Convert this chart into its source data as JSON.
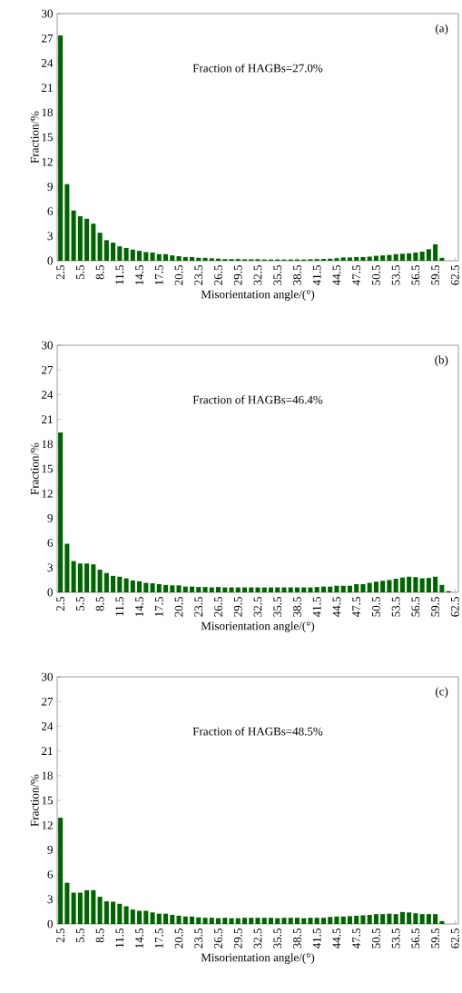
{
  "chart_data": [
    {
      "type": "bar",
      "categories": [
        "2.5",
        null,
        null,
        "5.5",
        null,
        null,
        "8.5",
        null,
        null,
        "11.5",
        null,
        null,
        "14.5",
        null,
        null,
        "17.5",
        null,
        null,
        "20.5",
        null,
        null,
        "23.5",
        null,
        null,
        "26.5",
        null,
        null,
        "29.5",
        null,
        null,
        "32.5",
        null,
        null,
        "35.5",
        null,
        null,
        "38.5",
        null,
        null,
        "41.5",
        null,
        null,
        "44.5",
        null,
        null,
        "47.5",
        null,
        null,
        "50.5",
        null,
        null,
        "53.5",
        null,
        null,
        "56.5",
        null,
        null,
        "59.5",
        null,
        null,
        "62.5"
      ],
      "values": [
        27.35,
        9.3,
        6.1,
        5.4,
        5.1,
        4.5,
        3.4,
        2.5,
        2.2,
        1.75,
        1.55,
        1.35,
        1.2,
        1.05,
        1.0,
        0.8,
        0.8,
        0.65,
        0.55,
        0.45,
        0.45,
        0.35,
        0.35,
        0.3,
        0.25,
        0.2,
        0.2,
        0.2,
        0.18,
        0.18,
        0.18,
        0.15,
        0.15,
        0.15,
        0.15,
        0.15,
        0.15,
        0.15,
        0.18,
        0.2,
        0.22,
        0.25,
        0.3,
        0.4,
        0.4,
        0.45,
        0.45,
        0.5,
        0.6,
        0.65,
        0.7,
        0.8,
        0.85,
        0.9,
        1.0,
        1.1,
        1.4,
        2.0,
        0.35,
        null,
        null
      ],
      "color": "#006400",
      "ylim": [
        0,
        30
      ],
      "yticks": [
        0,
        3,
        6,
        9,
        12,
        15,
        18,
        21,
        24,
        27,
        30
      ],
      "xlabel": "Misorientation angle/(°)",
      "ylabel": "Fraction/%",
      "annotations": [
        "(a)",
        "Fraction of HAGBs=27.0%"
      ]
    },
    {
      "type": "bar",
      "categories": [
        "2.5",
        null,
        null,
        "5.5",
        null,
        null,
        "8.5",
        null,
        null,
        "11.5",
        null,
        null,
        "14.5",
        null,
        null,
        "17.5",
        null,
        null,
        "20.5",
        null,
        null,
        "23.5",
        null,
        null,
        "26.5",
        null,
        null,
        "29.5",
        null,
        null,
        "32.5",
        null,
        null,
        "35.5",
        null,
        null,
        "38.5",
        null,
        null,
        "41.5",
        null,
        null,
        "44.5",
        null,
        null,
        "47.5",
        null,
        null,
        "50.5",
        null,
        null,
        "53.5",
        null,
        null,
        "56.5",
        null,
        null,
        "59.5",
        null,
        null,
        "62.5"
      ],
      "values": [
        19.4,
        5.9,
        3.8,
        3.5,
        3.5,
        3.4,
        2.75,
        2.35,
        2.0,
        1.9,
        1.7,
        1.45,
        1.35,
        1.15,
        1.1,
        1.0,
        0.9,
        0.85,
        0.85,
        0.7,
        0.7,
        0.65,
        0.65,
        0.6,
        0.65,
        0.6,
        0.6,
        0.6,
        0.6,
        0.6,
        0.6,
        0.6,
        0.6,
        0.6,
        0.6,
        0.6,
        0.6,
        0.6,
        0.6,
        0.65,
        0.7,
        0.7,
        0.8,
        0.8,
        0.8,
        1.0,
        1.0,
        1.15,
        1.3,
        1.4,
        1.5,
        1.65,
        1.8,
        1.9,
        1.85,
        1.7,
        1.75,
        1.9,
        0.9,
        0.15,
        null
      ],
      "color": "#006400",
      "ylim": [
        0,
        30
      ],
      "yticks": [
        0,
        3,
        6,
        9,
        12,
        15,
        18,
        21,
        24,
        27,
        30
      ],
      "xlabel": "Misorientation angle/(°)",
      "ylabel": "Fraction/%",
      "annotations": [
        "(b)",
        "Fraction of HAGBs=46.4%"
      ]
    },
    {
      "type": "bar",
      "categories": [
        "2.5",
        null,
        null,
        "5.5",
        null,
        null,
        "8.5",
        null,
        null,
        "11.5",
        null,
        null,
        "14.5",
        null,
        null,
        "17.5",
        null,
        null,
        "20.5",
        null,
        null,
        "23.5",
        null,
        null,
        "26.5",
        null,
        null,
        "29.5",
        null,
        null,
        "32.5",
        null,
        null,
        "35.5",
        null,
        null,
        "38.5",
        null,
        null,
        "41.5",
        null,
        null,
        "44.5",
        null,
        null,
        "47.5",
        null,
        null,
        "50.5",
        null,
        null,
        "53.5",
        null,
        null,
        "56.5",
        null,
        null,
        "59.5",
        null,
        null,
        "62.5"
      ],
      "values": [
        12.9,
        5.0,
        3.8,
        3.8,
        4.1,
        4.1,
        3.3,
        2.75,
        2.7,
        2.45,
        2.15,
        1.75,
        1.6,
        1.6,
        1.4,
        1.25,
        1.25,
        1.1,
        1.0,
        0.9,
        0.9,
        0.8,
        0.75,
        0.75,
        0.7,
        0.75,
        0.7,
        0.7,
        0.75,
        0.75,
        0.75,
        0.75,
        0.75,
        0.7,
        0.75,
        0.75,
        0.75,
        0.7,
        0.75,
        0.75,
        0.75,
        0.85,
        0.9,
        0.9,
        0.95,
        1.0,
        1.05,
        1.1,
        1.2,
        1.2,
        1.25,
        1.2,
        1.45,
        1.4,
        1.3,
        1.2,
        1.2,
        1.2,
        0.35,
        null,
        null
      ],
      "color": "#006400",
      "ylim": [
        0,
        30
      ],
      "yticks": [
        0,
        3,
        6,
        9,
        12,
        15,
        18,
        21,
        24,
        27,
        30
      ],
      "xlabel": "Misorientation angle/(°)",
      "ylabel": "Fraction/%",
      "annotations": [
        "(c)",
        "Fraction of HAGBs=48.5%"
      ]
    }
  ]
}
